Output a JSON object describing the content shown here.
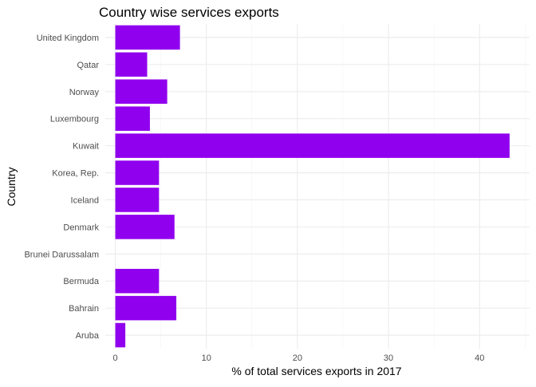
{
  "chart_data": {
    "type": "bar",
    "orientation": "horizontal",
    "title": "Country wise services exports",
    "xlabel": "% of total services exports in 2017",
    "ylabel": "Country",
    "categories": [
      "Aruba",
      "Bahrain",
      "Bermuda",
      "Brunei Darussalam",
      "Denmark",
      "Iceland",
      "Korea, Rep.",
      "Kuwait",
      "Luxembourg",
      "Norway",
      "Qatar",
      "United Kingdom"
    ],
    "values": [
      1.1,
      6.7,
      4.8,
      null,
      6.5,
      4.8,
      4.8,
      43.3,
      3.8,
      5.7,
      3.5,
      7.1
    ],
    "xlim": [
      -1.1,
      45.5
    ],
    "xticks": [
      0,
      10,
      20,
      30,
      40
    ],
    "xtick_labels": [
      "0",
      "10",
      "20",
      "30",
      "40"
    ],
    "bar_color": "#9000ee",
    "grid": true,
    "legend": "none"
  }
}
